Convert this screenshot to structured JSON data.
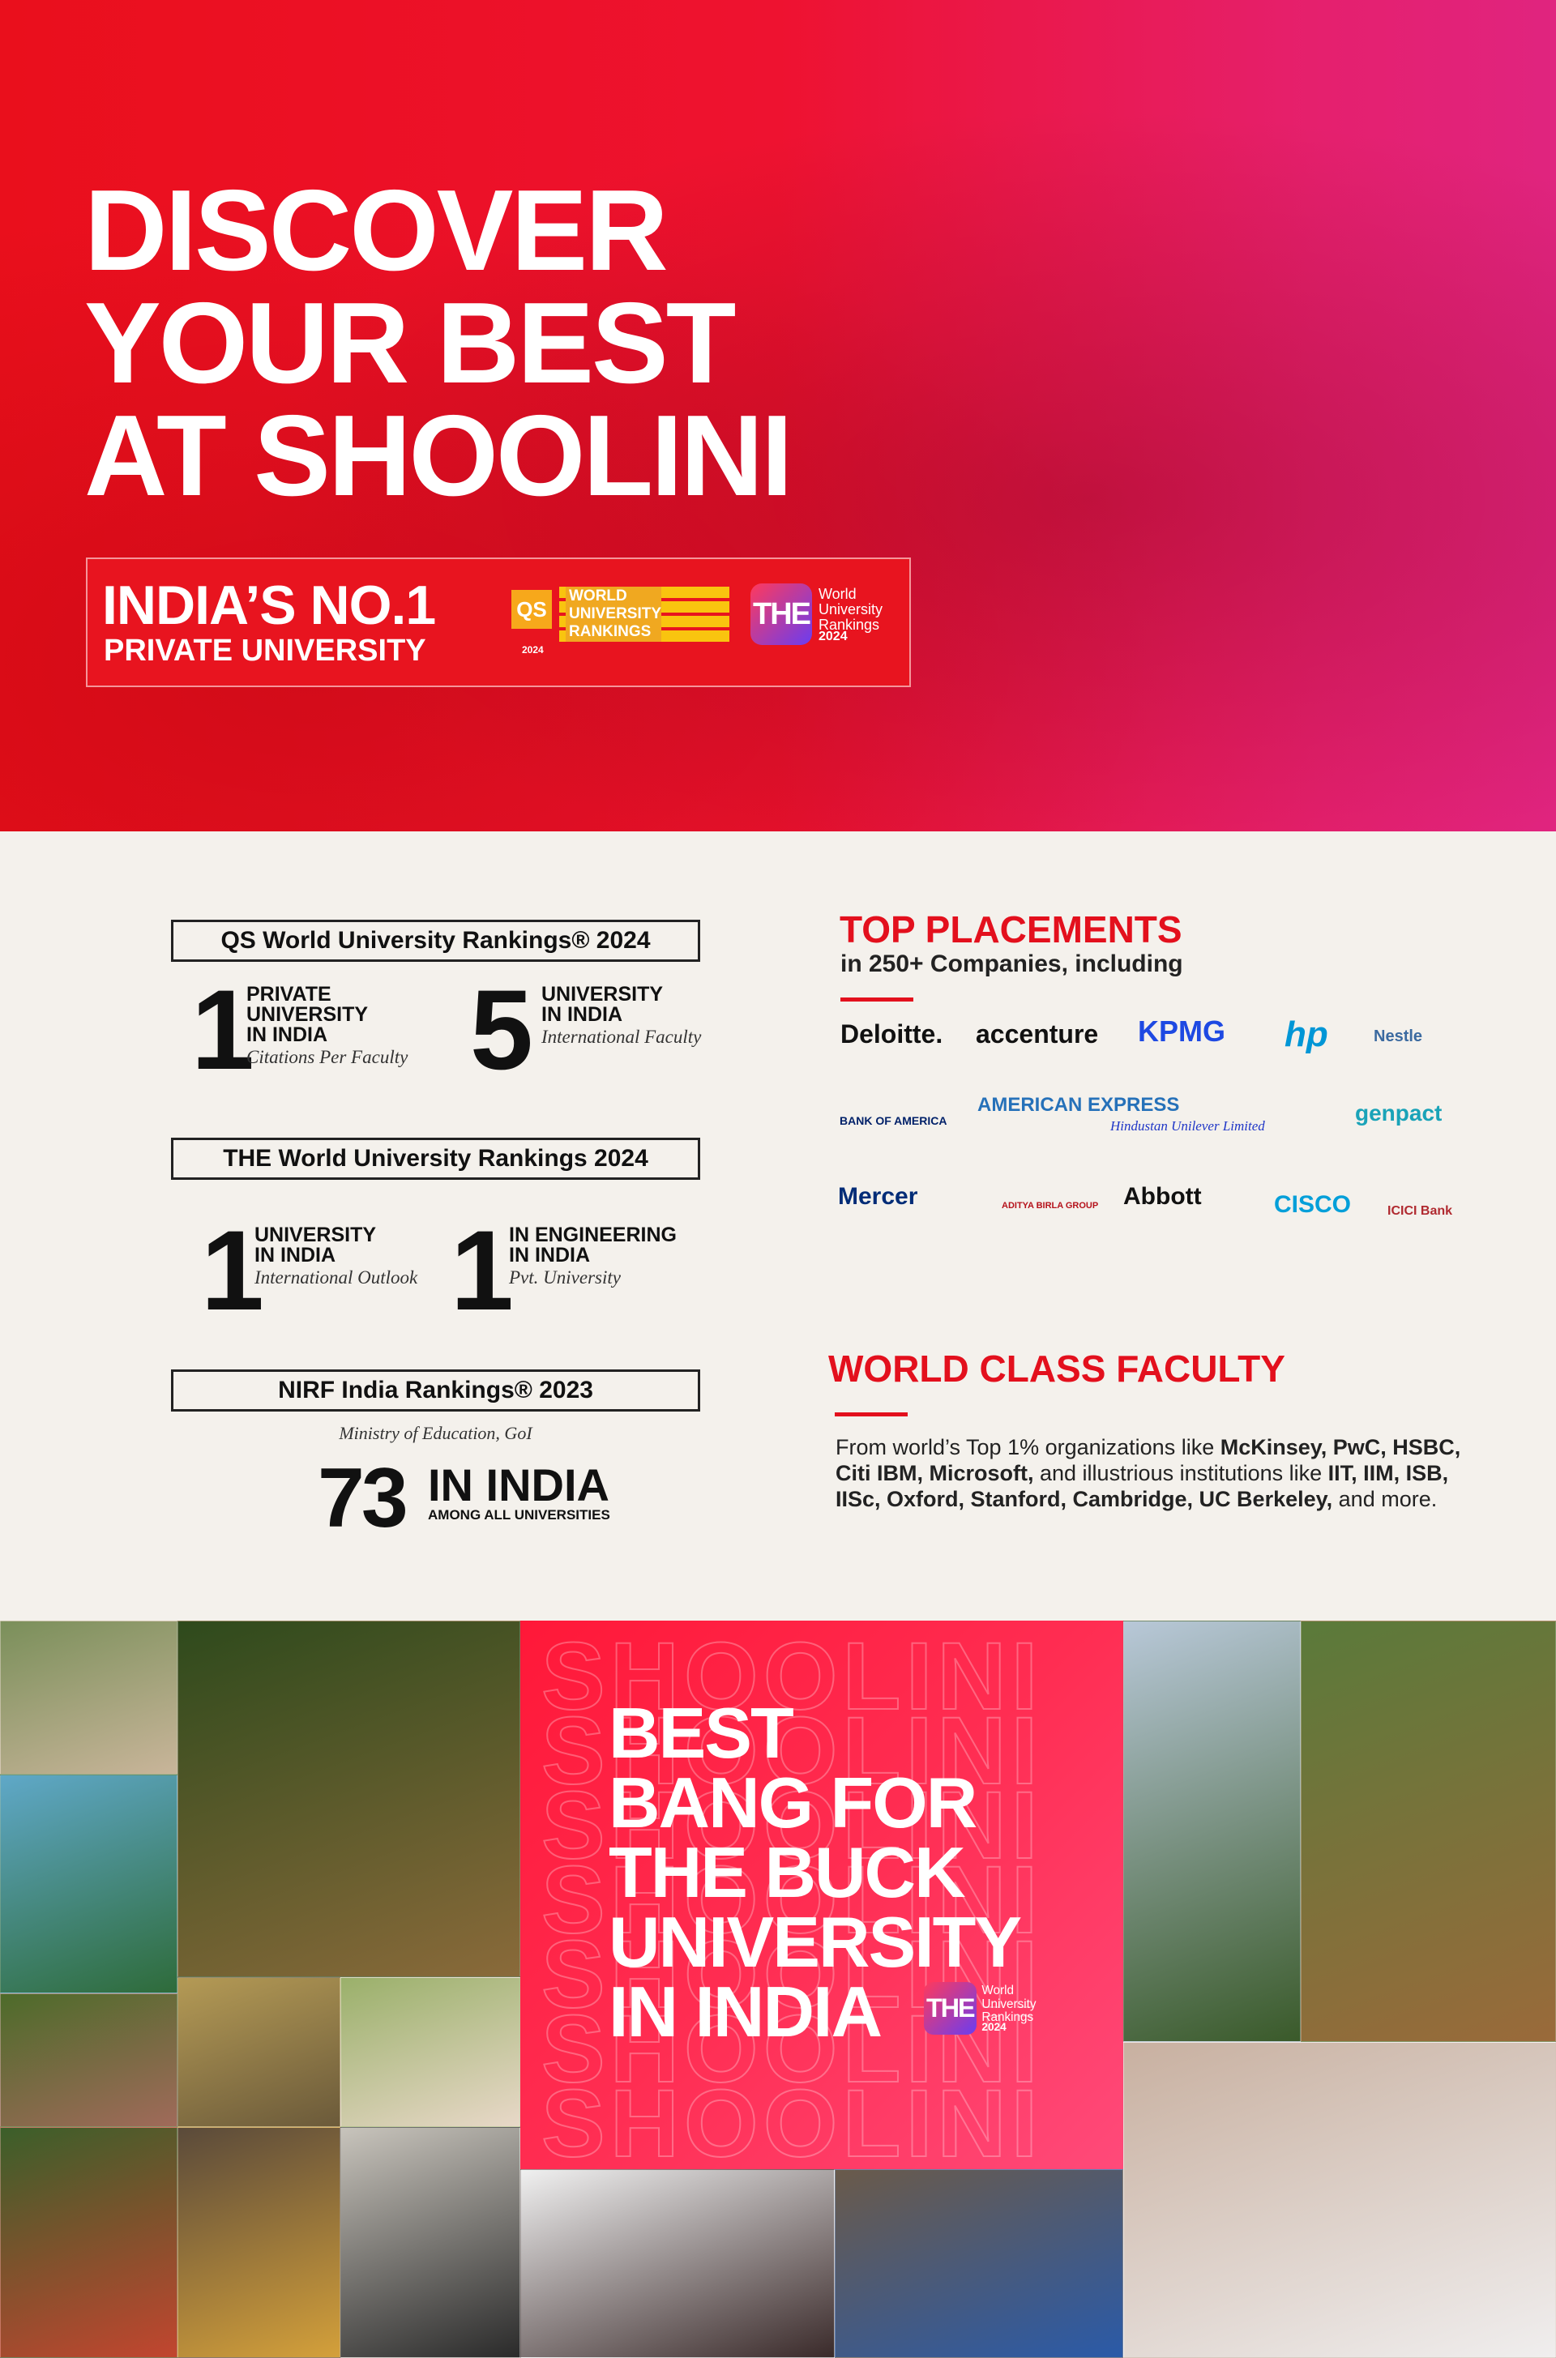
{
  "hero": {
    "title_lines": [
      "DISCOVER",
      "YOUR BEST",
      "AT SHOOLINI"
    ],
    "badge": {
      "rank": "INDIA’S NO.1",
      "subtitle": "PRIVATE UNIVERSITY",
      "qs_logo": {
        "mark": "QS",
        "text": "WORLD UNIVERSITY RANKINGS",
        "year": 2024
      },
      "the_logo": {
        "mark": "THE",
        "text": "World University Rankings",
        "year": 2024
      }
    }
  },
  "rankings": [
    {
      "title": "QS World University Rankings® 2024",
      "items": [
        {
          "number": 1,
          "lines": [
            "PRIVATE",
            "UNIVERSITY",
            "IN INDIA"
          ],
          "note": "Citations Per Faculty"
        },
        {
          "number": 5,
          "lines": [
            "UNIVERSITY",
            "IN INDIA"
          ],
          "note": "International Faculty"
        }
      ]
    },
    {
      "title": "THE World University Rankings 2024",
      "items": [
        {
          "number": 1,
          "lines": [
            "UNIVERSITY",
            "IN INDIA"
          ],
          "note": "International Outlook"
        },
        {
          "number": 1,
          "lines": [
            "IN ENGINEERING",
            "IN INDIA"
          ],
          "note": "Pvt. University"
        }
      ]
    },
    {
      "title": "NIRF India Rankings® 2023",
      "source": "Ministry of Education, GoI",
      "items": [
        {
          "number": 73,
          "lines": [
            "IN INDIA"
          ],
          "note": "AMONG ALL UNIVERSITIES"
        }
      ]
    }
  ],
  "placements": {
    "title": "TOP PLACEMENTS",
    "subtitle": "in 250+ Companies, including",
    "companies": [
      {
        "name": "Deloitte.",
        "color": "#111111"
      },
      {
        "name": "accenture",
        "color": "#111111"
      },
      {
        "name": "KPMG",
        "color": "#1e49e2"
      },
      {
        "name": "hp",
        "color": "#0096d6"
      },
      {
        "name": "Nestle",
        "color": "#3b6aa0"
      },
      {
        "name": "BANK OF AMERICA",
        "color": "#012169"
      },
      {
        "name": "AMERICAN EXPRESS",
        "color": "#2671b9"
      },
      {
        "name": "Hindustan Unilever Limited",
        "color": "#1f36c7"
      },
      {
        "name": "genpact",
        "color": "#1aa3b8"
      },
      {
        "name": "Mercer",
        "color": "#002c77"
      },
      {
        "name": "ADITYA BIRLA GROUP",
        "color": "#b5121b"
      },
      {
        "name": "Abbott",
        "color": "#111111"
      },
      {
        "name": "CISCO",
        "color": "#049fd9"
      },
      {
        "name": "ICICI Bank",
        "color": "#b02a30"
      }
    ]
  },
  "faculty": {
    "title": "WORLD CLASS FACULTY",
    "text": [
      {
        "text": "From world’s Top 1% organizations like "
      },
      {
        "text": "McKinsey, PwC, HSBC, Citi IBM, Microsoft,",
        "bold": true
      },
      {
        "text": " and illustrious institutions like "
      },
      {
        "text": "IIT, IIM, ISB, IISc, Oxford, Stanford, Cambridge, UC Berkeley,",
        "bold": true
      },
      {
        "text": " and more."
      }
    ]
  },
  "collage": {
    "watermark": "SHOOLINI",
    "headline_lines": [
      "BEST",
      "BANG FOR",
      "THE BUCK",
      "UNIVERSITY",
      "IN INDIA"
    ],
    "the_logo": {
      "mark": "THE",
      "text": "World University Rankings",
      "year": 2024
    }
  }
}
